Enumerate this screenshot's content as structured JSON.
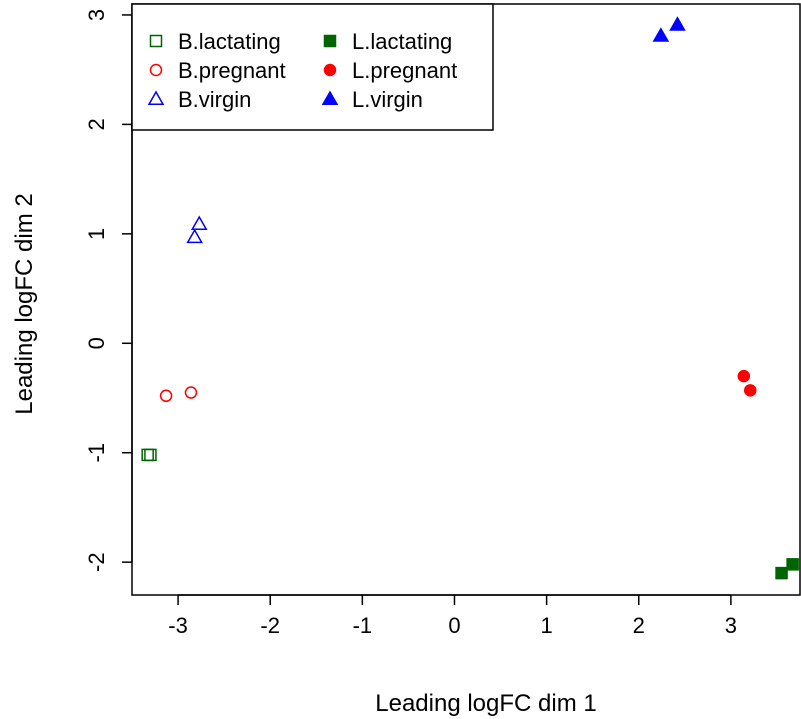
{
  "chart_data": {
    "type": "scatter",
    "title": "",
    "xlabel": "Leading logFC dim 1",
    "ylabel": "Leading logFC dim 2",
    "xlim": [
      -3.5,
      3.75
    ],
    "ylim": [
      -2.3,
      3.1
    ],
    "xticks": [
      -3,
      -2,
      -1,
      0,
      1,
      2,
      3
    ],
    "yticks": [
      -2,
      -1,
      0,
      1,
      2,
      3
    ],
    "grid": false,
    "legend_position": "top-left",
    "series": [
      {
        "name": "B.lactating",
        "color": "#006400",
        "shape": "square",
        "filled": false,
        "points": [
          {
            "x": -3.33,
            "y": -1.02
          },
          {
            "x": -3.3,
            "y": -1.02
          }
        ]
      },
      {
        "name": "B.pregnant",
        "color": "#ff0000",
        "shape": "circle",
        "filled": false,
        "points": [
          {
            "x": -3.13,
            "y": -0.48
          },
          {
            "x": -2.86,
            "y": -0.45
          }
        ]
      },
      {
        "name": "B.virgin",
        "color": "#0000ff",
        "shape": "triangle",
        "filled": false,
        "points": [
          {
            "x": -2.82,
            "y": 0.97
          },
          {
            "x": -2.77,
            "y": 1.09
          }
        ]
      },
      {
        "name": "L.lactating",
        "color": "#006400",
        "shape": "square",
        "filled": true,
        "points": [
          {
            "x": 3.55,
            "y": -2.1
          },
          {
            "x": 3.67,
            "y": -2.02
          }
        ]
      },
      {
        "name": "L.pregnant",
        "color": "#ff0000",
        "shape": "circle",
        "filled": true,
        "points": [
          {
            "x": 3.14,
            "y": -0.3
          },
          {
            "x": 3.21,
            "y": -0.43
          }
        ]
      },
      {
        "name": "L.virgin",
        "color": "#0000ff",
        "shape": "triangle",
        "filled": true,
        "points": [
          {
            "x": 2.24,
            "y": 2.81
          },
          {
            "x": 2.42,
            "y": 2.91
          }
        ]
      }
    ],
    "legend_order": [
      "B.lactating",
      "L.lactating",
      "B.pregnant",
      "L.pregnant",
      "B.virgin",
      "L.virgin"
    ]
  }
}
